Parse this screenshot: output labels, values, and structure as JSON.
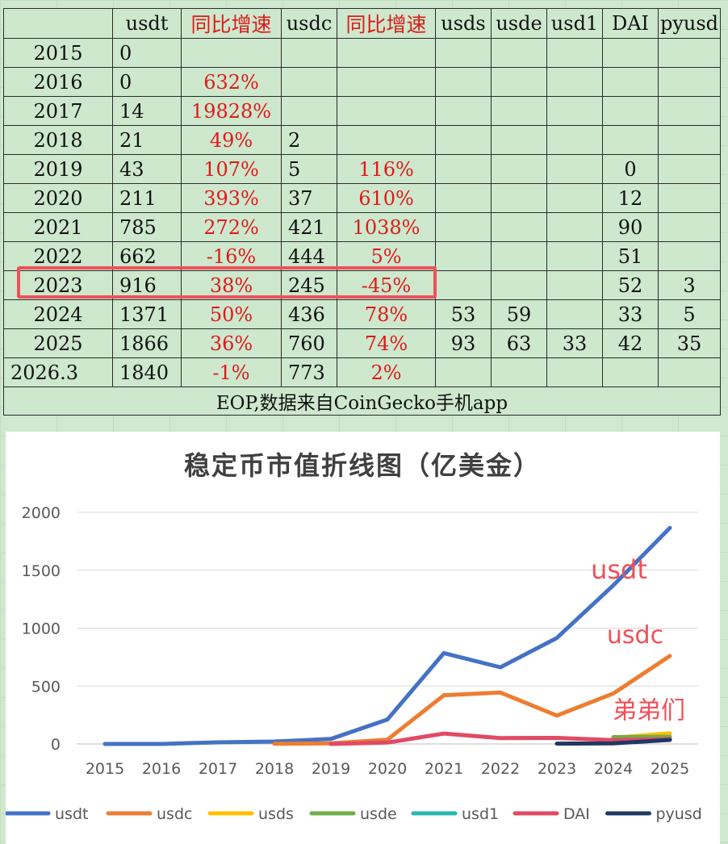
{
  "table": {
    "headers": [
      "",
      "usdt",
      "同比增速",
      "usdc",
      "同比增速",
      "usds",
      "usde",
      "usd1",
      "DAI",
      "pyusd"
    ],
    "rows": [
      [
        "2015",
        "0",
        "",
        "",
        "",
        "",
        "",
        "",
        "",
        ""
      ],
      [
        "2016",
        "0",
        "632%",
        "",
        "",
        "",
        "",
        "",
        "",
        ""
      ],
      [
        "2017",
        "14",
        "19828%",
        "",
        "",
        "",
        "",
        "",
        "",
        ""
      ],
      [
        "2018",
        "21",
        "49%",
        "2",
        "",
        "",
        "",
        "",
        "",
        ""
      ],
      [
        "2019",
        "43",
        "107%",
        "5",
        "116%",
        "",
        "",
        "",
        "0",
        ""
      ],
      [
        "2020",
        "211",
        "393%",
        "37",
        "610%",
        "",
        "",
        "",
        "12",
        ""
      ],
      [
        "2021",
        "785",
        "272%",
        "421",
        "1038%",
        "",
        "",
        "",
        "90",
        ""
      ],
      [
        "2022",
        "662",
        "-16%",
        "444",
        "5%",
        "",
        "",
        "",
        "51",
        ""
      ],
      [
        "2023",
        "916",
        "38%",
        "245",
        "-45%",
        "",
        "",
        "",
        "52",
        "3"
      ],
      [
        "2024",
        "1371",
        "50%",
        "436",
        "78%",
        "53",
        "59",
        "",
        "33",
        "5"
      ],
      [
        "2025",
        "1866",
        "36%",
        "760",
        "74%",
        "93",
        "63",
        "33",
        "42",
        "35"
      ],
      [
        "2026.3",
        "1840",
        "-1%",
        "773",
        "2%",
        "",
        "",
        "",
        "",
        ""
      ]
    ],
    "footer": "EOP,数据来自CoinGecko手机app",
    "highlighted_row": "2023"
  },
  "colors": {
    "red_text": "#e01a1a",
    "highlight_box": "#f0505a",
    "sheet_bg": "#cde8cd"
  },
  "chart_data": {
    "type": "line",
    "title": "稳定币市值折线图（亿美金）",
    "categories": [
      "2015",
      "2016",
      "2017",
      "2018",
      "2019",
      "2020",
      "2021",
      "2022",
      "2023",
      "2024",
      "2025"
    ],
    "ylim": [
      0,
      2000
    ],
    "yticks": [
      0,
      500,
      1000,
      1500,
      2000
    ],
    "grid": true,
    "legend_position": "bottom",
    "series": [
      {
        "name": "usdt",
        "color": "#4472c4",
        "values": [
          0,
          0,
          14,
          21,
          43,
          211,
          785,
          662,
          916,
          1371,
          1866
        ]
      },
      {
        "name": "usdc",
        "color": "#ed7d31",
        "values": [
          null,
          null,
          null,
          2,
          5,
          37,
          421,
          444,
          245,
          436,
          760
        ]
      },
      {
        "name": "usds",
        "color": "#ffc000",
        "values": [
          null,
          null,
          null,
          null,
          null,
          null,
          null,
          null,
          null,
          53,
          93
        ]
      },
      {
        "name": "usde",
        "color": "#70ad47",
        "values": [
          null,
          null,
          null,
          null,
          null,
          null,
          null,
          null,
          null,
          59,
          63
        ]
      },
      {
        "name": "usd1",
        "color": "#26b7b0",
        "values": [
          null,
          null,
          null,
          null,
          null,
          null,
          null,
          null,
          null,
          null,
          33
        ]
      },
      {
        "name": "DAI",
        "color": "#e14a63",
        "values": [
          null,
          null,
          null,
          null,
          0,
          12,
          90,
          51,
          52,
          33,
          42
        ]
      },
      {
        "name": "pyusd",
        "color": "#1f3864",
        "values": [
          null,
          null,
          null,
          null,
          null,
          null,
          null,
          null,
          3,
          5,
          35
        ]
      }
    ],
    "annotations": [
      {
        "text": "usdt",
        "color": "#f0505a"
      },
      {
        "text": "usdc",
        "color": "#f0505a"
      },
      {
        "text": "弟弟们",
        "color": "#f0505a"
      }
    ]
  }
}
